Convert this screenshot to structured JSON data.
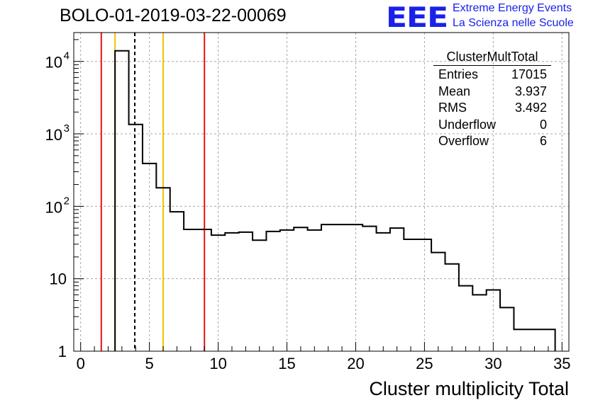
{
  "title": "BOLO-01-2019-03-22-00069",
  "logo": {
    "mark": "EEE",
    "line1": "Extreme Energy Events",
    "line2": "La Scienza nelle Scuole",
    "color": "#1a22e8"
  },
  "stats": {
    "name": "ClusterMultTotal",
    "rows": [
      {
        "label": "Entries",
        "value": "17015"
      },
      {
        "label": "Mean",
        "value": "3.937"
      },
      {
        "label": "RMS",
        "value": "3.492"
      },
      {
        "label": "Underflow",
        "value": "0"
      },
      {
        "label": "Overflow",
        "value": "6"
      }
    ]
  },
  "chart_data": {
    "type": "histogram",
    "xlabel": "Cluster multiplicity Total",
    "ylabel": "",
    "xlim": [
      -0.5,
      35.5
    ],
    "ylim": [
      1,
      25000
    ],
    "y_scale": "log",
    "grid": true,
    "x_ticks": [
      0,
      5,
      10,
      15,
      20,
      25,
      30,
      35
    ],
    "y_ticks": [
      {
        "value": 1,
        "label": "1"
      },
      {
        "value": 10,
        "label": "10"
      },
      {
        "value": 100,
        "label": "10",
        "exp": "2"
      },
      {
        "value": 1000,
        "label": "10",
        "exp": "3"
      },
      {
        "value": 10000,
        "label": "10",
        "exp": "4"
      }
    ],
    "bins": [
      {
        "low": 2.5,
        "high": 3.5,
        "count": 14000
      },
      {
        "low": 3.5,
        "high": 4.5,
        "count": 1350
      },
      {
        "low": 4.5,
        "high": 5.5,
        "count": 390
      },
      {
        "low": 5.5,
        "high": 6.5,
        "count": 180
      },
      {
        "low": 6.5,
        "high": 7.5,
        "count": 84
      },
      {
        "low": 7.5,
        "high": 8.5,
        "count": 48
      },
      {
        "low": 8.5,
        "high": 9.5,
        "count": 48
      },
      {
        "low": 9.5,
        "high": 10.5,
        "count": 40
      },
      {
        "low": 10.5,
        "high": 11.5,
        "count": 43
      },
      {
        "low": 11.5,
        "high": 12.5,
        "count": 44
      },
      {
        "low": 12.5,
        "high": 13.5,
        "count": 34
      },
      {
        "low": 13.5,
        "high": 14.5,
        "count": 45
      },
      {
        "low": 14.5,
        "high": 15.5,
        "count": 47
      },
      {
        "low": 15.5,
        "high": 16.5,
        "count": 51
      },
      {
        "low": 16.5,
        "high": 17.5,
        "count": 47
      },
      {
        "low": 17.5,
        "high": 18.5,
        "count": 56
      },
      {
        "low": 18.5,
        "high": 19.5,
        "count": 56
      },
      {
        "low": 19.5,
        "high": 20.5,
        "count": 56
      },
      {
        "low": 20.5,
        "high": 21.5,
        "count": 53
      },
      {
        "low": 21.5,
        "high": 22.5,
        "count": 43
      },
      {
        "low": 22.5,
        "high": 23.5,
        "count": 50
      },
      {
        "low": 23.5,
        "high": 24.5,
        "count": 35
      },
      {
        "low": 24.5,
        "high": 25.5,
        "count": 35
      },
      {
        "low": 25.5,
        "high": 26.5,
        "count": 23
      },
      {
        "low": 26.5,
        "high": 27.5,
        "count": 16
      },
      {
        "low": 27.5,
        "high": 28.5,
        "count": 8
      },
      {
        "low": 28.5,
        "high": 29.5,
        "count": 6
      },
      {
        "low": 29.5,
        "high": 30.5,
        "count": 7
      },
      {
        "low": 30.5,
        "high": 31.5,
        "count": 4
      },
      {
        "low": 31.5,
        "high": 32.5,
        "count": 2
      },
      {
        "low": 32.5,
        "high": 33.5,
        "count": 2
      },
      {
        "low": 33.5,
        "high": 34.5,
        "count": 2
      }
    ],
    "vertical_lines": [
      {
        "x": 1.5,
        "color": "#e81010",
        "style": "solid"
      },
      {
        "x": 2.5,
        "color": "#f2c200",
        "style": "solid"
      },
      {
        "x": 3.937,
        "color": "#000000",
        "style": "dashed"
      },
      {
        "x": 6.0,
        "color": "#f2c200",
        "style": "solid"
      },
      {
        "x": 9.0,
        "color": "#e81010",
        "style": "solid"
      }
    ]
  }
}
